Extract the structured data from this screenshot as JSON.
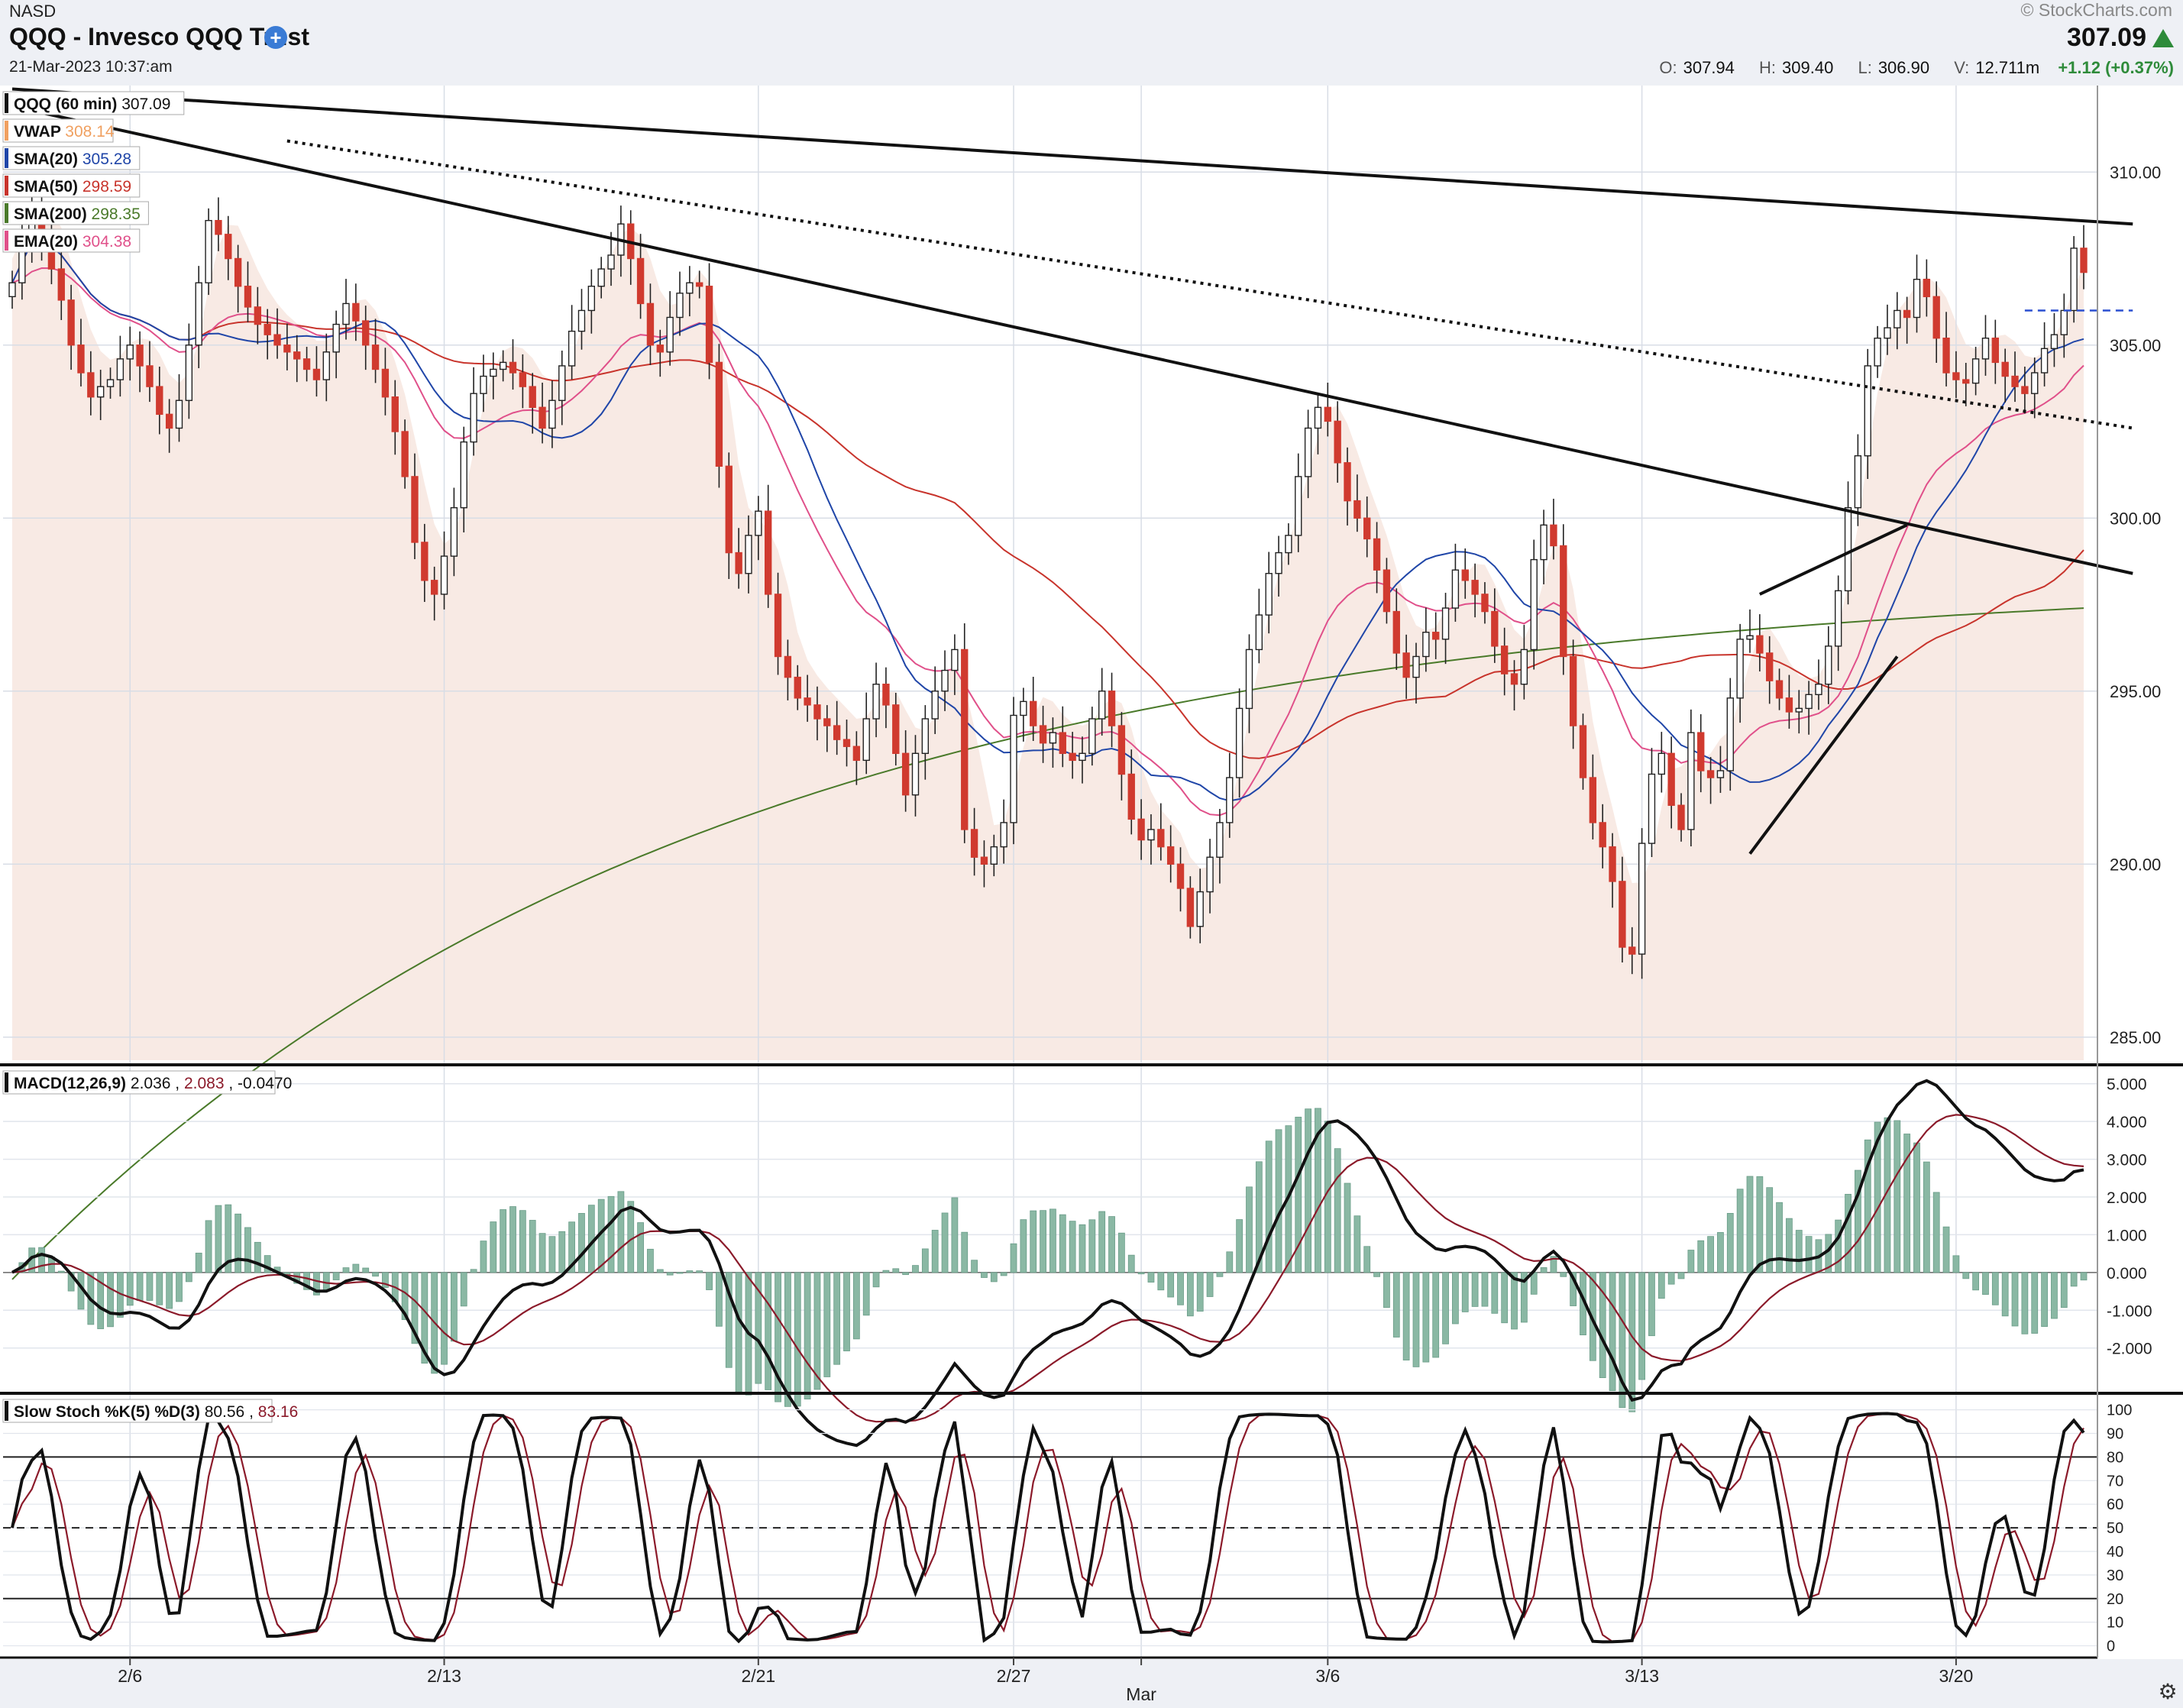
{
  "header": {
    "exchange": "NASD",
    "title": "QQQ - Invesco QQQ Trust",
    "date": "21-Mar-2023 10:37:am",
    "brand": "© StockCharts.com",
    "last": "307.09",
    "open_label": "O:",
    "open": "307.94",
    "high_label": "H:",
    "high": "309.40",
    "low_label": "L:",
    "low": "306.90",
    "vol_label": "V:",
    "vol": "12.711m",
    "change": "+1.12 (+0.37%)",
    "plus_icon": "+"
  },
  "colors": {
    "up": "#ffffff",
    "down": "#d03a2f",
    "wick": "#222222",
    "vwap": "#f0a060",
    "sma20": "#2046a8",
    "sma50": "#c8342c",
    "sma200": "#4a7a2a",
    "ema20": "#e0508a",
    "hist": "#8ab8a4",
    "signal": "#8b1a2a",
    "header_bg": "#eef0f5"
  },
  "chart_data": [
    {
      "type": "candlestick",
      "legend": [
        {
          "label": "QQQ (60 min)",
          "value": "307.09",
          "color": "#111111"
        },
        {
          "label": "VWAP",
          "value": "308.14",
          "color": "#f0a060"
        },
        {
          "label": "SMA(20)",
          "value": "305.28",
          "color": "#2046a8"
        },
        {
          "label": "SMA(50)",
          "value": "298.59",
          "color": "#c8342c"
        },
        {
          "label": "SMA(200)",
          "value": "298.35",
          "color": "#4a7a2a"
        },
        {
          "label": "EMA(20)",
          "value": "304.38",
          "color": "#e0508a"
        }
      ],
      "ylim": [
        284.2,
        312.5
      ],
      "y_ticks": [
        "285.00",
        "290.00",
        "295.00",
        "300.00",
        "305.00",
        "310.00"
      ],
      "x_ticks": [
        {
          "label": "2/6",
          "i": 12
        },
        {
          "label": "2/13",
          "i": 44
        },
        {
          "label": "2/21",
          "i": 76
        },
        {
          "label": "2/27",
          "i": 102
        },
        {
          "label": "Mar",
          "i": 115
        },
        {
          "label": "3/6",
          "i": 134
        },
        {
          "label": "3/13",
          "i": 166
        },
        {
          "label": "3/20",
          "i": 198
        }
      ],
      "close": [
        306.8,
        308.0,
        309.1,
        308.2,
        307.2,
        306.3,
        305.0,
        304.2,
        303.5,
        303.8,
        304.0,
        304.6,
        305.0,
        304.4,
        303.8,
        303.0,
        302.6,
        303.4,
        305.0,
        306.8,
        308.6,
        308.2,
        307.5,
        306.7,
        306.1,
        305.6,
        305.3,
        305.0,
        304.8,
        304.6,
        304.3,
        304.0,
        304.8,
        305.6,
        306.2,
        305.7,
        305.0,
        304.3,
        303.5,
        302.5,
        301.2,
        299.3,
        298.2,
        297.8,
        298.9,
        300.3,
        302.2,
        303.6,
        304.1,
        304.3,
        304.5,
        304.2,
        303.8,
        303.2,
        302.6,
        303.4,
        304.4,
        305.4,
        306.0,
        306.7,
        307.2,
        307.6,
        308.5,
        307.5,
        306.2,
        305.0,
        304.8,
        305.8,
        306.5,
        306.8,
        306.7,
        304.5,
        301.5,
        299.0,
        298.4,
        299.5,
        300.2,
        297.8,
        296.0,
        295.4,
        294.8,
        294.6,
        294.2,
        294.0,
        293.6,
        293.4,
        293.0,
        294.2,
        295.2,
        294.6,
        293.2,
        292.0,
        293.2,
        294.2,
        295.0,
        295.6,
        296.2,
        291.0,
        290.2,
        290.0,
        290.5,
        291.2,
        294.3,
        294.7,
        294.0,
        293.5,
        293.8,
        293.2,
        293.0,
        293.2,
        294.2,
        295.0,
        294.0,
        292.6,
        291.3,
        290.7,
        291.0,
        290.5,
        290.0,
        289.3,
        288.2,
        289.2,
        290.2,
        291.2,
        292.5,
        294.5,
        296.2,
        297.2,
        298.4,
        299.0,
        299.5,
        301.2,
        302.6,
        303.2,
        302.8,
        301.6,
        300.5,
        300.0,
        299.4,
        298.5,
        297.3,
        296.1,
        295.4,
        296.0,
        296.7,
        296.5,
        297.4,
        298.5,
        298.2,
        297.8,
        297.3,
        296.3,
        295.5,
        295.2,
        296.2,
        298.8,
        299.8,
        299.2,
        296.0,
        294.0,
        292.5,
        291.2,
        290.5,
        289.5,
        287.6,
        287.4,
        290.6,
        292.6,
        293.2,
        291.7,
        291.0,
        293.8,
        292.7,
        292.5,
        292.7,
        294.8,
        296.5,
        296.6,
        296.1,
        295.3,
        294.8,
        294.4,
        294.5,
        294.9,
        295.2,
        296.3,
        297.9,
        300.3,
        301.8,
        304.4,
        305.2,
        305.5,
        306.0,
        305.8,
        306.9,
        306.4,
        305.2,
        304.2,
        304.0,
        303.9,
        304.6,
        305.2,
        304.5,
        304.1,
        303.8,
        303.6,
        304.2,
        304.9,
        305.3,
        306.0,
        307.8,
        307.1
      ],
      "macd": {
        "ylim": [
          -3.2,
          5.5
        ],
        "y_ticks": [
          "-2.000",
          "-1.000",
          "0.000",
          "1.000",
          "2.000",
          "3.000",
          "4.000",
          "5.000"
        ],
        "legend": {
          "label": "MACD(12,26,9)",
          "macd": "2.036",
          "signal": "2.083",
          "hist": "-0.0470"
        }
      },
      "stoch": {
        "ylim": [
          -5,
          107
        ],
        "y_ticks": [
          "0",
          "10",
          "20",
          "30",
          "40",
          "50",
          "60",
          "70",
          "80",
          "90",
          "100"
        ],
        "levels": [
          20,
          50,
          80
        ],
        "legend": {
          "label": "Slow Stoch %K(5) %D(3)",
          "k": "80.56",
          "d": "83.16"
        }
      }
    }
  ]
}
